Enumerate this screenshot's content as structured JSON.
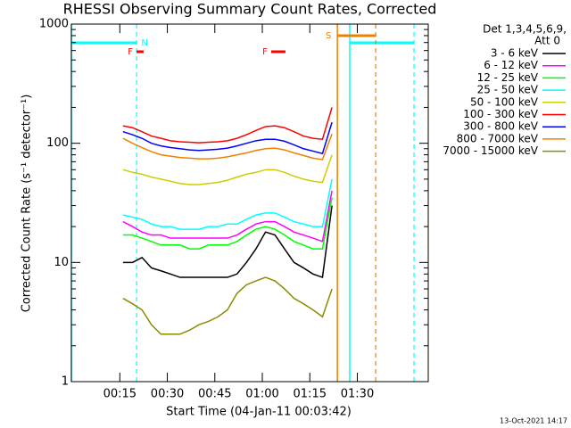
{
  "chart_data": {
    "type": "line",
    "title": "RHESSI Observing Summary Count Rates, Corrected",
    "x_label": "Start Time (04-Jan-11 00:03:42)",
    "y_label": "Corrected Count Rate (s⁻¹ detector⁻¹)",
    "legend_header": [
      "Det 1,3,4,5,6,9,",
      "Att 0"
    ],
    "footer": "13-Oct-2021 14:17",
    "log_y": true,
    "xlim": [
      -0.3,
      112.4
    ],
    "xticks": [
      {
        "value": 15,
        "label": "00:15"
      },
      {
        "value": 30,
        "label": "00:30"
      },
      {
        "value": 45,
        "label": "00:45"
      },
      {
        "value": 60,
        "label": "01:00"
      },
      {
        "value": 75,
        "label": "01:15"
      },
      {
        "value": 90,
        "label": "01:30"
      }
    ],
    "ylim": [
      1,
      1000
    ],
    "yticks": [
      1,
      10,
      100,
      1000
    ],
    "x": [
      16,
      19,
      22,
      25,
      28,
      31,
      34,
      37,
      40,
      43,
      46,
      49,
      52,
      55,
      58,
      61,
      64,
      67,
      70,
      73,
      76,
      79,
      82
    ],
    "series": [
      {
        "name": "3 - 6 keV",
        "color": "#000000",
        "values": [
          10,
          10,
          11,
          9,
          8.5,
          8,
          7.5,
          7.5,
          7.5,
          7.5,
          7.5,
          7.5,
          8,
          10,
          13,
          18,
          17,
          13,
          10,
          9,
          8,
          7.5,
          30
        ]
      },
      {
        "name": "6 - 12 keV",
        "color": "#ff00ff",
        "values": [
          22,
          20,
          18,
          17,
          17,
          16,
          16,
          16,
          16,
          16,
          16,
          16,
          17,
          19,
          21,
          22,
          22,
          20,
          18,
          17,
          16,
          15,
          40
        ]
      },
      {
        "name": "12 - 25 keV",
        "color": "#00ff00",
        "values": [
          17,
          17,
          16,
          15,
          14,
          14,
          14,
          13,
          13,
          14,
          14,
          14,
          15,
          17,
          19,
          20,
          19,
          17,
          15,
          14,
          13,
          13,
          35
        ]
      },
      {
        "name": "25 - 50 keV",
        "color": "#00ffff",
        "values": [
          25,
          24,
          23,
          21,
          20,
          20,
          19,
          19,
          19,
          20,
          20,
          21,
          21,
          23,
          25,
          26,
          26,
          24,
          22,
          21,
          20,
          20,
          50
        ]
      },
      {
        "name": "50 - 100 keV",
        "color": "#cdcd00",
        "values": [
          60,
          57,
          55,
          52,
          50,
          48,
          46,
          45,
          45,
          46,
          47,
          49,
          52,
          55,
          57,
          60,
          60,
          57,
          53,
          50,
          48,
          47,
          80
        ]
      },
      {
        "name": "100 - 300 keV",
        "color": "#ff0000",
        "values": [
          140,
          135,
          125,
          115,
          110,
          105,
          103,
          102,
          101,
          102,
          103,
          105,
          110,
          118,
          128,
          138,
          140,
          135,
          125,
          115,
          110,
          108,
          200
        ]
      },
      {
        "name": "300 - 800 keV",
        "color": "#0000ff",
        "values": [
          125,
          118,
          110,
          100,
          95,
          92,
          90,
          88,
          87,
          88,
          89,
          91,
          95,
          100,
          105,
          108,
          108,
          104,
          97,
          90,
          86,
          82,
          150
        ]
      },
      {
        "name": "800 - 7000 keV",
        "color": "#f08000",
        "values": [
          110,
          100,
          92,
          85,
          80,
          78,
          76,
          75,
          74,
          74,
          75,
          77,
          80,
          83,
          87,
          90,
          91,
          88,
          83,
          79,
          75,
          73,
          120
        ]
      },
      {
        "name": "7000 - 15000 keV",
        "color": "#8b8b00",
        "values": [
          5,
          4.5,
          4,
          3,
          2.5,
          2.5,
          2.5,
          2.7,
          3,
          3.2,
          3.5,
          4,
          5.5,
          6.5,
          7,
          7.5,
          7,
          6,
          5,
          4.5,
          4,
          3.5,
          6
        ]
      }
    ],
    "intervals": [
      {
        "label": "N",
        "color": "#00ffff",
        "ranges": [
          [
            -0.3,
            20.3
          ],
          [
            87.6,
            107.9
          ]
        ]
      },
      {
        "label": "S",
        "color": "#f08000",
        "ranges": [
          [
            83.7,
            95.8
          ]
        ]
      },
      {
        "label": "F",
        "color": "#ff0000",
        "ranges": [
          [
            20.3,
            22.5
          ],
          [
            62.8,
            67.3
          ]
        ]
      }
    ]
  }
}
